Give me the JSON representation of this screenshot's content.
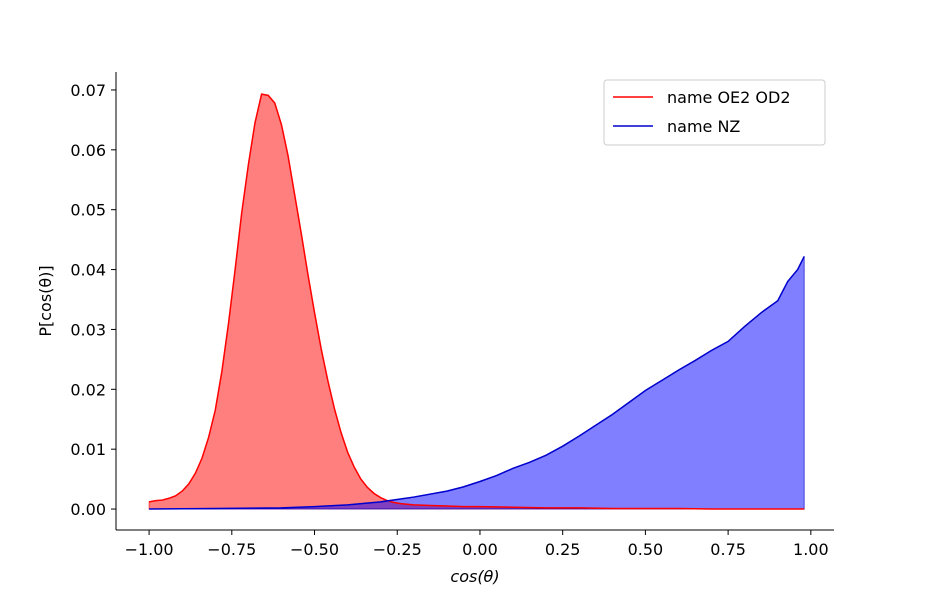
{
  "chart_data": {
    "type": "area",
    "title": "",
    "xlabel": "cos(θ)",
    "ylabel": "P[cos(θ)]",
    "xlim": [
      -1.1,
      1.07
    ],
    "ylim": [
      -0.0035,
      0.073
    ],
    "xticks": [
      -1.0,
      -0.75,
      -0.5,
      -0.25,
      0.0,
      0.25,
      0.5,
      0.75,
      1.0
    ],
    "xtick_labels": [
      "−1.00",
      "−0.75",
      "−0.50",
      "−0.25",
      "0.00",
      "0.25",
      "0.50",
      "0.75",
      "1.00"
    ],
    "yticks": [
      0.0,
      0.01,
      0.02,
      0.03,
      0.04,
      0.05,
      0.06,
      0.07
    ],
    "ytick_labels": [
      "0.00",
      "0.01",
      "0.02",
      "0.03",
      "0.04",
      "0.05",
      "0.06",
      "0.07"
    ],
    "grid": false,
    "legend_position": "top-right",
    "series": [
      {
        "name": "name OE2 OD2",
        "color": "#ff0000",
        "fill_color": "#ff0000",
        "fill_opacity": 0.5,
        "x": [
          -1.0,
          -0.98,
          -0.96,
          -0.94,
          -0.92,
          -0.9,
          -0.88,
          -0.86,
          -0.84,
          -0.82,
          -0.8,
          -0.78,
          -0.76,
          -0.74,
          -0.72,
          -0.7,
          -0.68,
          -0.66,
          -0.64,
          -0.62,
          -0.6,
          -0.58,
          -0.56,
          -0.54,
          -0.52,
          -0.5,
          -0.48,
          -0.46,
          -0.44,
          -0.42,
          -0.4,
          -0.38,
          -0.36,
          -0.34,
          -0.32,
          -0.3,
          -0.28,
          -0.26,
          -0.24,
          -0.22,
          -0.2,
          -0.15,
          -0.1,
          -0.05,
          0.0,
          0.1,
          0.2,
          0.3,
          0.4,
          0.5,
          0.6,
          0.7,
          0.8,
          0.9,
          0.98
        ],
        "y": [
          0.0012,
          0.0014,
          0.0015,
          0.0018,
          0.0022,
          0.003,
          0.0042,
          0.006,
          0.0085,
          0.012,
          0.0165,
          0.023,
          0.031,
          0.04,
          0.0495,
          0.0575,
          0.0645,
          0.0693,
          0.0691,
          0.0678,
          0.0642,
          0.059,
          0.0525,
          0.046,
          0.0392,
          0.0328,
          0.0268,
          0.0215,
          0.0168,
          0.0128,
          0.0095,
          0.007,
          0.005,
          0.0036,
          0.0026,
          0.0019,
          0.0014,
          0.0011,
          0.0009,
          0.0008,
          0.0007,
          0.0006,
          0.0005,
          0.0004,
          0.0004,
          0.0003,
          0.0002,
          0.0002,
          0.0001,
          0.0001,
          0.0001,
          0.0,
          0.0,
          0.0,
          0.0
        ]
      },
      {
        "name": "name NZ",
        "color": "#0000cc",
        "fill_color": "#0000ff",
        "fill_opacity": 0.5,
        "x": [
          -1.0,
          -0.8,
          -0.6,
          -0.5,
          -0.4,
          -0.3,
          -0.2,
          -0.1,
          -0.05,
          0.0,
          0.05,
          0.1,
          0.15,
          0.2,
          0.25,
          0.3,
          0.35,
          0.4,
          0.45,
          0.5,
          0.55,
          0.6,
          0.65,
          0.7,
          0.75,
          0.8,
          0.85,
          0.9,
          0.93,
          0.96,
          0.98
        ],
        "y": [
          0.0,
          0.0001,
          0.0002,
          0.0004,
          0.0007,
          0.0012,
          0.002,
          0.003,
          0.0037,
          0.0046,
          0.0056,
          0.0068,
          0.0078,
          0.009,
          0.0105,
          0.0122,
          0.014,
          0.0158,
          0.0178,
          0.0198,
          0.0215,
          0.0232,
          0.0248,
          0.0265,
          0.028,
          0.0305,
          0.0328,
          0.0348,
          0.038,
          0.04,
          0.0422
        ]
      }
    ]
  }
}
